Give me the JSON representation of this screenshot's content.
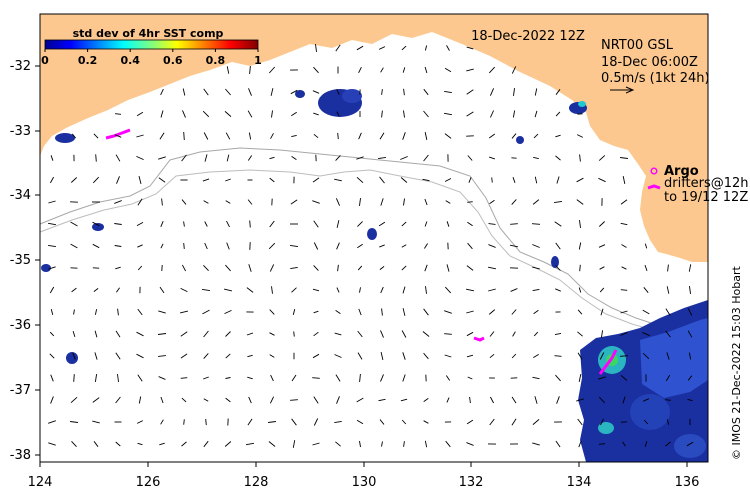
{
  "colorbar": {
    "title": "std dev of 4hr SST comp",
    "ticks": [
      "0",
      "0.2",
      "0.4",
      "0.6",
      "0.8",
      "1"
    ]
  },
  "header": {
    "date": "18-Dec-2022 12Z",
    "product": "NRT00 GSL",
    "time": "18-Dec 06:00Z",
    "scale_label": "0.5m/s (1kt 24h)"
  },
  "legend": {
    "argo": "Argo",
    "drifters_line1": "drifters@12h",
    "drifters_line2": "to 19/12 12Z"
  },
  "axes": {
    "x_ticks": [
      "124",
      "126",
      "128",
      "130",
      "132",
      "134",
      "136"
    ],
    "y_ticks": [
      "-32",
      "-33",
      "-34",
      "-35",
      "-36",
      "-37",
      "-38"
    ]
  },
  "credit": "© IMOS 21-Dec-2022 15:03 Hobart",
  "colors": {
    "land": "#fcc890",
    "frame": "#000000",
    "magenta": "#ff00ff",
    "contour": "#a0a0a0",
    "sst_dark": "#1a2fa0"
  }
}
